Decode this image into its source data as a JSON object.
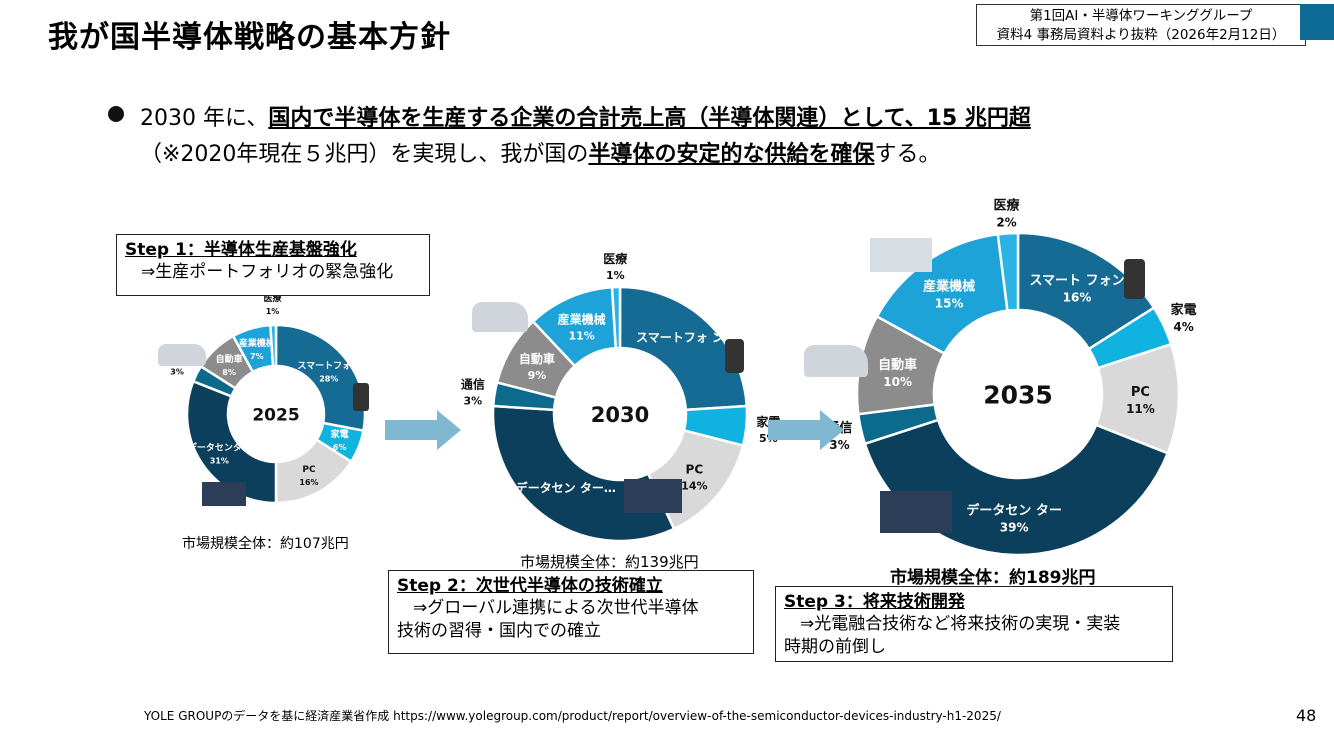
{
  "header": {
    "title": "我が国半導体戦略の基本方針",
    "source_line1": "第1回AI・半導体ワーキンググループ",
    "source_line2": "資料4 事務局資料より抜粋（2026年2月12日）"
  },
  "bullet": {
    "l1_a": "2030 年に、",
    "l1_b": "国内で半導体を生産する企業の合計売上高（半導体関連）として、15 兆円超",
    "l2_a": "（※2020年現在５兆円）を実現し、我が国の",
    "l2_b": "半導体の安定的な供給を確保",
    "l2_c": "する。"
  },
  "steps": {
    "step1_title": "Step 1：半導体生産基盤強化",
    "step1_body": "⇒生産ポートフォリオの緊急強化",
    "step2_title": "Step 2：次世代半導体の技術確立",
    "step2_body1": "⇒グローバル連携による次世代半導体",
    "step2_body2": "技術の習得・国内での確立",
    "step3_title": "Step 3：将来技術開発",
    "step3_body1": "⇒光電融合技術など将来技術の実現・実装",
    "step3_body2": "時期の前倒し"
  },
  "markets": {
    "m2025": "市場規模全体：約107兆円",
    "m2030": "市場規模全体：約139兆円",
    "m2035": "市場規模全体：約189兆円"
  },
  "footer": {
    "source": "YOLE GROUPのデータを基に経済産業省作成 https://www.yolegroup.com/product/report/overview-of-the-semiconductor-devices-industry-h1-2025/",
    "page": "48"
  },
  "chart_data": [
    {
      "type": "pie",
      "center_label": "2025",
      "categories": [
        "スマートフォン",
        "家電",
        "PC",
        "データセンター",
        "通信",
        "自動車",
        "産業機械",
        "医療"
      ],
      "labels": [
        "スマートフォン",
        "家電",
        "PC",
        "データセンター",
        "通信",
        "自動車",
        "産業機械",
        "医療"
      ],
      "values": [
        28,
        6,
        16,
        31,
        3,
        8,
        7,
        1
      ],
      "value_labels": [
        "28%",
        "6%",
        "16%",
        "31%",
        "3%",
        "8%",
        "7%",
        "1%"
      ]
    },
    {
      "type": "pie",
      "center_label": "2030",
      "categories": [
        "スマートフォン",
        "家電",
        "PC",
        "データセンター",
        "通信",
        "自動車",
        "産業機械",
        "医療"
      ],
      "labels": [
        "スマートフォ ン…",
        "家電",
        "PC",
        "データセン ター…",
        "通信",
        "自動車",
        "産業機械",
        "医療"
      ],
      "values": [
        24,
        5,
        14,
        33,
        3,
        9,
        11,
        1
      ],
      "value_labels": [
        "",
        "5%",
        "14%",
        "",
        "3%",
        "9%",
        "11%",
        "1%"
      ]
    },
    {
      "type": "pie",
      "center_label": "2035",
      "categories": [
        "スマートフォン",
        "家電",
        "PC",
        "データセンター",
        "通信",
        "自動車",
        "産業機械",
        "医療"
      ],
      "labels": [
        "スマート フォン",
        "家電",
        "PC",
        "データセン ター",
        "通信",
        "自動車",
        "産業機械",
        "医療"
      ],
      "values": [
        16,
        4,
        11,
        39,
        3,
        10,
        15,
        2
      ],
      "value_labels": [
        "16%",
        "4%",
        "11%",
        "39%",
        "3%",
        "10%",
        "15%",
        "2%"
      ]
    }
  ],
  "colors": {
    "smartphone": "#156b93",
    "appliance": "#10b3e0",
    "pc": "#d9d9d9",
    "datacenter": "#0b3f5c",
    "telecom": "#0c6a8c",
    "auto": "#8c8c8c",
    "industrial": "#1ea3d9",
    "medical": "#2ab4e6",
    "arrow": "#7fb8d0",
    "corner": "#0e6b96"
  }
}
